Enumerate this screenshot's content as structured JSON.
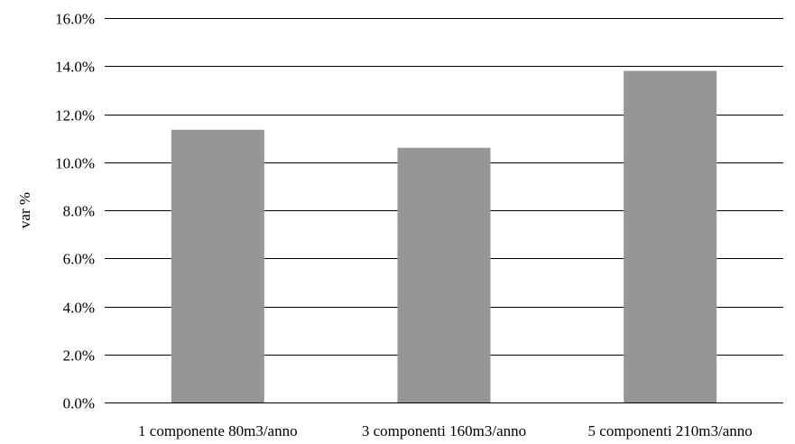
{
  "chart_data": {
    "type": "bar",
    "title": "",
    "xlabel": "",
    "ylabel": "var %",
    "categories": [
      "1 componente 80m3/anno",
      "3 componenti 160m3/anno",
      "5 componenti 210m3/anno"
    ],
    "values": [
      0.1135,
      0.106,
      0.138
    ],
    "ylim": [
      0,
      0.16
    ],
    "yticks": [
      0,
      0.02,
      0.04,
      0.06,
      0.08,
      0.1,
      0.12,
      0.14,
      0.16
    ],
    "ytick_labels": [
      "0.0%",
      "2.0%",
      "4.0%",
      "6.0%",
      "8.0%",
      "10.0%",
      "12.0%",
      "14.0%",
      "16.0%"
    ],
    "grid": true,
    "legend": "none",
    "bar_color": "#969696"
  }
}
